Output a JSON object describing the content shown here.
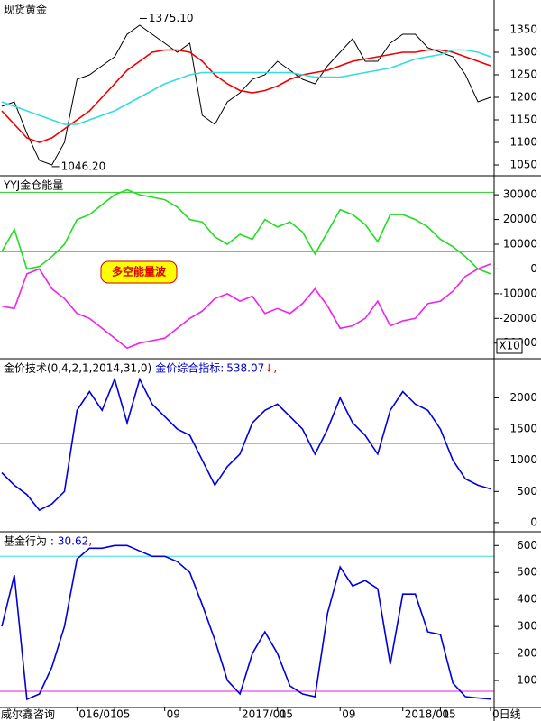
{
  "chart_data": [
    {
      "type": "line",
      "title": "现货黄金",
      "ylim": [
        1026,
        1416
      ],
      "yticks": [
        1050,
        1100,
        1150,
        1200,
        1250,
        1300,
        1350
      ],
      "series": [
        {
          "color": "#000000",
          "values": [
            1180,
            1190,
            1120,
            1060,
            1050,
            1100,
            1240,
            1250,
            1270,
            1290,
            1340,
            1360,
            1340,
            1320,
            1300,
            1320,
            1160,
            1140,
            1190,
            1210,
            1240,
            1250,
            1280,
            1260,
            1240,
            1230,
            1270,
            1300,
            1330,
            1280,
            1280,
            1320,
            1340,
            1340,
            1310,
            1300,
            1290,
            1250,
            1190,
            1200
          ]
        },
        {
          "color": "#ee0000",
          "values": [
            1170,
            1140,
            1110,
            1100,
            1110,
            1130,
            1150,
            1170,
            1200,
            1230,
            1260,
            1280,
            1300,
            1305,
            1305,
            1300,
            1280,
            1250,
            1230,
            1215,
            1210,
            1215,
            1225,
            1240,
            1250,
            1255,
            1260,
            1270,
            1280,
            1285,
            1290,
            1295,
            1300,
            1300,
            1305,
            1305,
            1300,
            1290,
            1280,
            1270
          ]
        },
        {
          "color": "#33dddd",
          "values": [
            1190,
            1180,
            1170,
            1160,
            1150,
            1140,
            1140,
            1150,
            1160,
            1170,
            1185,
            1200,
            1215,
            1230,
            1240,
            1250,
            1255,
            1255,
            1255,
            1255,
            1255,
            1255,
            1255,
            1255,
            1250,
            1245,
            1245,
            1245,
            1250,
            1255,
            1260,
            1265,
            1275,
            1285,
            1290,
            1295,
            1305,
            1305,
            1300,
            1290
          ]
        }
      ],
      "extremes": [
        {
          "value": 1375.1,
          "label": "1375.10"
        },
        {
          "value": 1046.2,
          "label": "1046.20"
        }
      ]
    },
    {
      "type": "line",
      "title": "YYJ金仓能量",
      "ylim": [
        -36300,
        37700
      ],
      "yticks": [
        -30000,
        -20000,
        -10000,
        0,
        10000,
        20000,
        30000
      ],
      "scale_label": "X10",
      "annotation": "多空能量波",
      "hlines": [
        {
          "value": 31000,
          "color": "#22cc22"
        },
        {
          "value": 7000,
          "color": "#22cc22"
        }
      ],
      "series": [
        {
          "color": "#22dd22",
          "values": [
            7000,
            16000,
            0,
            1000,
            5000,
            10000,
            20000,
            22000,
            26000,
            30000,
            32000,
            30000,
            29000,
            28000,
            25000,
            20000,
            19000,
            13000,
            10000,
            14000,
            12000,
            20000,
            17000,
            19000,
            15000,
            6000,
            15000,
            24000,
            22000,
            18000,
            11000,
            22000,
            22000,
            20000,
            17000,
            12000,
            9000,
            5000,
            0,
            -2000
          ]
        },
        {
          "color": "#ee22ee",
          "values": [
            -15000,
            -16000,
            -2000,
            0,
            -8000,
            -12000,
            -18000,
            -20000,
            -24000,
            -28000,
            -32000,
            -30000,
            -29000,
            -28000,
            -24000,
            -20000,
            -17000,
            -12000,
            -10000,
            -13000,
            -11000,
            -18000,
            -16000,
            -18000,
            -14000,
            -8000,
            -15000,
            -24000,
            -23000,
            -20000,
            -13000,
            -23000,
            -21000,
            -20000,
            -14000,
            -13000,
            -9000,
            -3000,
            0,
            2000
          ]
        }
      ]
    },
    {
      "type": "line",
      "title": "金价技术(0,4,2,1,2014,31,0)",
      "indicator_label": "金价综合指标:",
      "indicator_value": 538.07,
      "indicator_suffix": "↓,",
      "ylim": [
        -146,
        2628
      ],
      "yticks": [
        0,
        500,
        1000,
        1500,
        2000
      ],
      "hlines": [
        {
          "value": 1270,
          "color": "#dd22dd"
        }
      ],
      "series": [
        {
          "color": "#0000dd",
          "values": [
            800,
            600,
            450,
            200,
            300,
            500,
            1800,
            2100,
            1800,
            2300,
            1600,
            2300,
            1900,
            1700,
            1500,
            1400,
            1000,
            600,
            900,
            1100,
            1600,
            1800,
            1900,
            1700,
            1500,
            1100,
            1500,
            2000,
            1600,
            1400,
            1100,
            1800,
            2100,
            1900,
            1800,
            1500,
            1000,
            700,
            600,
            540
          ]
        }
      ]
    },
    {
      "type": "line",
      "title": "基金行为 :",
      "indicator_value": 30.62,
      "indicator_suffix": ",",
      "ylim": [
        0,
        651
      ],
      "yticks": [
        100,
        200,
        300,
        400,
        500,
        600
      ],
      "hlines": [
        {
          "value": 560,
          "color": "#33dddd"
        },
        {
          "value": 60,
          "color": "#dd22dd"
        }
      ],
      "series": [
        {
          "color": "#0000dd",
          "values": [
            300,
            490,
            30,
            50,
            150,
            300,
            550,
            590,
            590,
            600,
            600,
            580,
            560,
            560,
            540,
            500,
            380,
            250,
            100,
            50,
            200,
            280,
            200,
            80,
            50,
            40,
            350,
            520,
            450,
            470,
            440,
            160,
            420,
            420,
            280,
            270,
            90,
            40,
            35,
            31
          ]
        }
      ],
      "source": "威尔鑫咨询",
      "categories": [
        null,
        null,
        null,
        null,
        null,
        null,
        "016/01",
        null,
        null,
        "05",
        null,
        null,
        null,
        "09",
        null,
        null,
        null,
        null,
        null,
        "2017/01",
        null,
        null,
        "05",
        null,
        null,
        null,
        null,
        "09",
        null,
        null,
        null,
        null,
        "2018/01",
        null,
        null,
        "05",
        null,
        null,
        null,
        "0日线"
      ]
    }
  ]
}
